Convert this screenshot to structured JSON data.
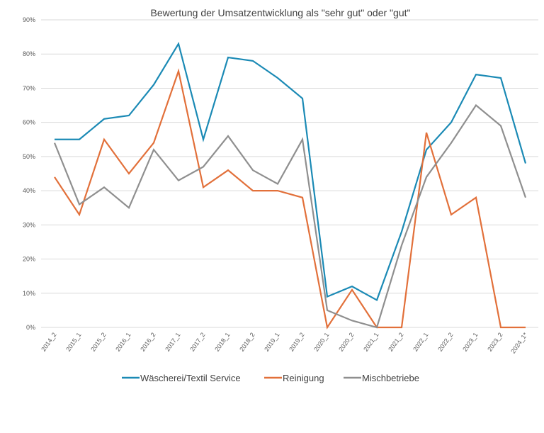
{
  "chart_data": {
    "type": "line",
    "title": "Bewertung der Umsatzentwicklung als \"sehr gut\" oder \"gut\"",
    "xlabel": "",
    "ylabel": "",
    "ylim": [
      0,
      90
    ],
    "yticks": [
      "0%",
      "10%",
      "20%",
      "30%",
      "40%",
      "50%",
      "60%",
      "70%",
      "80%",
      "90%"
    ],
    "grid": true,
    "legend_position": "bottom",
    "categories": [
      "2014_2",
      "2015_1",
      "2015_2",
      "2016_1",
      "2016_2",
      "2017_1",
      "2017_2",
      "2018_1",
      "2018_2",
      "2019_1",
      "2019_2",
      "2020_1",
      "2020_2",
      "2021_1",
      "2021_2",
      "2022_1",
      "2022_2",
      "2023_1",
      "2023_2",
      "2024_1*"
    ],
    "series": [
      {
        "name": "Wäscherei/Textil Service",
        "color": "#1b8ab5",
        "values": [
          55,
          55,
          61,
          62,
          71,
          83,
          55,
          79,
          78,
          73,
          67,
          9,
          12,
          8,
          28,
          52,
          60,
          74,
          73,
          48
        ]
      },
      {
        "name": "Reinigung",
        "color": "#e2703a",
        "values": [
          44,
          33,
          55,
          45,
          54,
          75,
          41,
          46,
          40,
          40,
          38,
          0,
          11,
          0,
          0,
          57,
          33,
          38,
          0,
          0
        ]
      },
      {
        "name": "Mischbetriebe",
        "color": "#8f8f8f",
        "values": [
          54,
          36,
          41,
          35,
          52,
          43,
          47,
          56,
          46,
          42,
          55,
          5,
          2,
          0,
          24,
          44,
          54,
          65,
          59,
          38
        ]
      }
    ]
  }
}
